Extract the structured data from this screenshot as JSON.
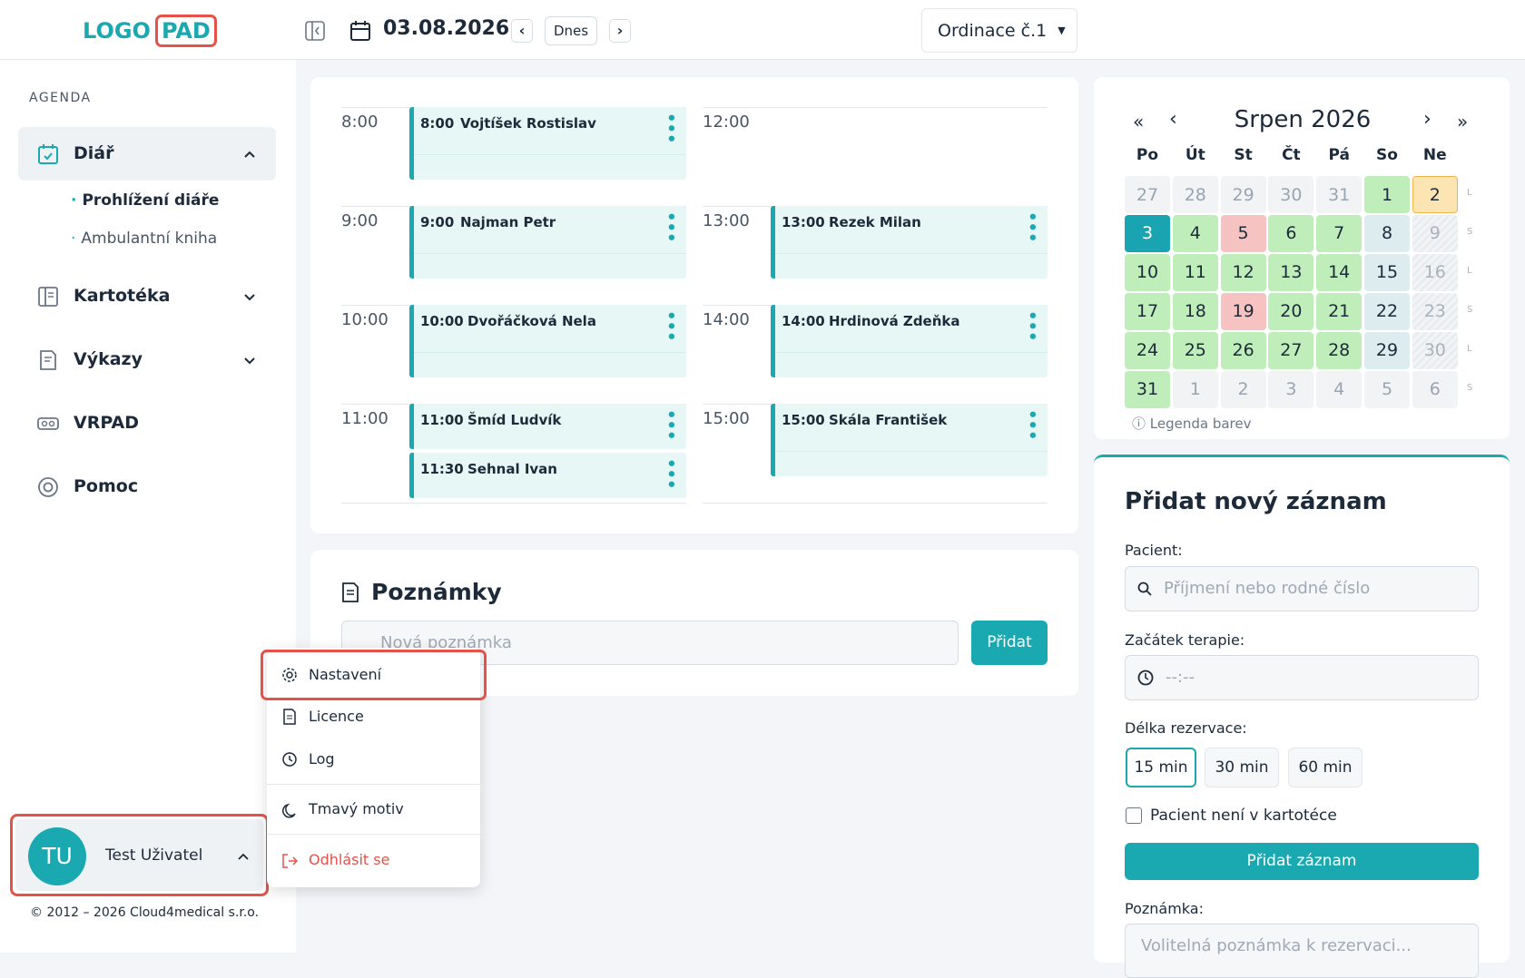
{
  "header": {
    "logo": "LOGO",
    "logo_box": "PAD",
    "date": "03.08.2026",
    "today": "Dnes",
    "clinic": "Ordinace č.1"
  },
  "sidebar": {
    "section": "AGENDA",
    "nav": [
      {
        "label": "Diář",
        "children": [
          "Prohlížení diáře",
          "Ambulantní kniha"
        ]
      },
      {
        "label": "Kartotéka"
      },
      {
        "label": "Výkazy"
      },
      {
        "label": "VRPAD"
      },
      {
        "label": "Pomoc"
      }
    ],
    "user": {
      "initials": "TU",
      "name": "Test Uživatel"
    },
    "copyright": "© 2012 – 2026 Cloud4medical s.r.o."
  },
  "user_menu": {
    "items": [
      "Nastavení",
      "Licence",
      "Log",
      "Tmavý motiv",
      "Odhlásit se"
    ]
  },
  "schedule": {
    "columns": [
      {
        "rows": [
          {
            "hour": "8:00",
            "appointments": [
              {
                "time": "8:00",
                "name": "Vojtíšek Rostislav"
              }
            ]
          },
          {
            "hour": "9:00",
            "appointments": [
              {
                "time": "9:00",
                "name": "Najman Petr"
              }
            ]
          },
          {
            "hour": "10:00",
            "appointments": [
              {
                "time": "10:00",
                "name": "Dvořáčková Nela"
              }
            ]
          },
          {
            "hour": "11:00",
            "appointments": [
              {
                "time": "11:00",
                "name": "Šmíd Ludvík"
              },
              {
                "time": "11:30",
                "name": "Sehnal Ivan"
              }
            ]
          }
        ]
      },
      {
        "rows": [
          {
            "hour": "12:00",
            "appointments": []
          },
          {
            "hour": "13:00",
            "appointments": [
              {
                "time": "13:00",
                "name": "Rezek Milan"
              }
            ]
          },
          {
            "hour": "14:00",
            "appointments": [
              {
                "time": "14:00",
                "name": "Hrdinová Zdeňka"
              }
            ]
          },
          {
            "hour": "15:00",
            "appointments": [
              {
                "time": "15:00",
                "name": "Skála František"
              }
            ]
          }
        ]
      }
    ]
  },
  "notes": {
    "title": "Poznámky",
    "placeholder": "Nová poznámka",
    "button": "Přidat"
  },
  "calendar": {
    "title": "Srpen 2026",
    "weekdays": [
      "Po",
      "Út",
      "St",
      "Čt",
      "Pá",
      "So",
      "Ne"
    ],
    "weeks": [
      {
        "side": "L",
        "days": [
          {
            "day": 27,
            "state": "other"
          },
          {
            "day": 28,
            "state": "other"
          },
          {
            "day": 29,
            "state": "other"
          },
          {
            "day": 30,
            "state": "other"
          },
          {
            "day": 31,
            "state": "other"
          },
          {
            "day": 1,
            "state": "free"
          },
          {
            "day": 2,
            "state": "holiday"
          }
        ]
      },
      {
        "side": "S",
        "days": [
          {
            "day": 3,
            "state": "today"
          },
          {
            "day": 4,
            "state": "free"
          },
          {
            "day": 5,
            "state": "full"
          },
          {
            "day": 6,
            "state": "free"
          },
          {
            "day": 7,
            "state": "free"
          },
          {
            "day": 8,
            "state": "saturday"
          },
          {
            "day": 9,
            "state": "sunday"
          }
        ]
      },
      {
        "side": "L",
        "days": [
          {
            "day": 10,
            "state": "free"
          },
          {
            "day": 11,
            "state": "free"
          },
          {
            "day": 12,
            "state": "free"
          },
          {
            "day": 13,
            "state": "free"
          },
          {
            "day": 14,
            "state": "free"
          },
          {
            "day": 15,
            "state": "saturday"
          },
          {
            "day": 16,
            "state": "sunday"
          }
        ]
      },
      {
        "side": "S",
        "days": [
          {
            "day": 17,
            "state": "free"
          },
          {
            "day": 18,
            "state": "free"
          },
          {
            "day": 19,
            "state": "full"
          },
          {
            "day": 20,
            "state": "free"
          },
          {
            "day": 21,
            "state": "free"
          },
          {
            "day": 22,
            "state": "saturday"
          },
          {
            "day": 23,
            "state": "sunday"
          }
        ]
      },
      {
        "side": "L",
        "days": [
          {
            "day": 24,
            "state": "free"
          },
          {
            "day": 25,
            "state": "free"
          },
          {
            "day": 26,
            "state": "free"
          },
          {
            "day": 27,
            "state": "free"
          },
          {
            "day": 28,
            "state": "free"
          },
          {
            "day": 29,
            "state": "saturday"
          },
          {
            "day": 30,
            "state": "sunday"
          }
        ]
      },
      {
        "side": "S",
        "days": [
          {
            "day": 31,
            "state": "free"
          },
          {
            "day": 1,
            "state": "other"
          },
          {
            "day": 2,
            "state": "other"
          },
          {
            "day": 3,
            "state": "other"
          },
          {
            "day": 4,
            "state": "other"
          },
          {
            "day": 5,
            "state": "other"
          },
          {
            "day": 6,
            "state": "other"
          }
        ]
      }
    ],
    "legend": "Legenda barev"
  },
  "form": {
    "title": "Přidat nový záznam",
    "patient_label": "Pacient:",
    "patient_placeholder": "Příjmení nebo rodné číslo",
    "start_label": "Začátek terapie:",
    "start_placeholder": "--:--",
    "duration_label": "Délka rezervace:",
    "durations": [
      "15 min",
      "30 min",
      "60 min"
    ],
    "checkbox": "Pacient není v kartotéce",
    "submit": "Přidat záznam",
    "note_label": "Poznámka:",
    "note_placeholder": "Volitelná poznámka k rezervaci..."
  }
}
